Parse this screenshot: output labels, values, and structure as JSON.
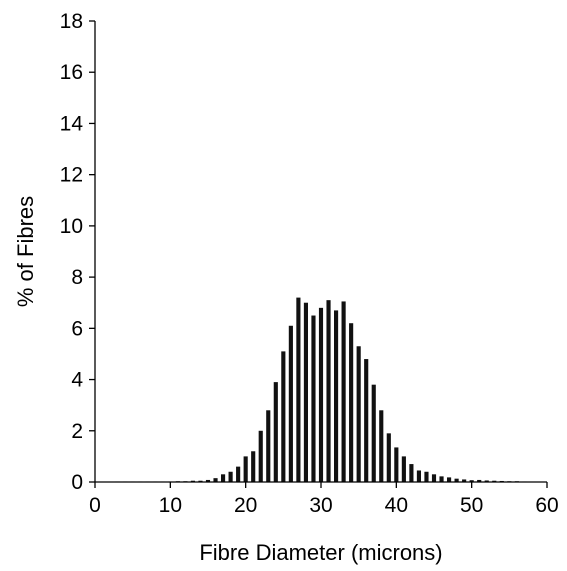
{
  "chart_data": {
    "type": "bar",
    "title": "",
    "xlabel": "Fibre Diameter (microns)",
    "ylabel": "% of Fibres",
    "xlim": [
      0,
      60
    ],
    "ylim": [
      0,
      18
    ],
    "xticks": [
      0,
      10,
      20,
      30,
      40,
      50,
      60
    ],
    "yticks": [
      0,
      2,
      4,
      6,
      8,
      10,
      12,
      14,
      16,
      18
    ],
    "grid": false,
    "legend": "none",
    "bar_color": "#111111",
    "series": [
      {
        "x": [
          3,
          4,
          5,
          6,
          7,
          8,
          9,
          10,
          11,
          12,
          13,
          14,
          15,
          16,
          17,
          18,
          19,
          20,
          21,
          22,
          23,
          24,
          25,
          26,
          27,
          28,
          29,
          30,
          31,
          32,
          33,
          34,
          35,
          36,
          37,
          38,
          39,
          40,
          41,
          42,
          43,
          44,
          45,
          46,
          47,
          48,
          49,
          50,
          51,
          52,
          53,
          54,
          55,
          56,
          57
        ],
        "values": [
          0.02,
          0.02,
          0.02,
          0.02,
          0.02,
          0.02,
          0.02,
          0.02,
          0.03,
          0.03,
          0.05,
          0.05,
          0.08,
          0.15,
          0.3,
          0.4,
          0.6,
          1.0,
          1.2,
          2.0,
          2.8,
          3.9,
          5.1,
          6.1,
          7.2,
          7.0,
          6.5,
          6.8,
          7.1,
          6.7,
          7.05,
          6.2,
          5.3,
          4.8,
          3.8,
          2.8,
          1.9,
          1.35,
          1.0,
          0.7,
          0.45,
          0.4,
          0.3,
          0.22,
          0.18,
          0.13,
          0.1,
          0.07,
          0.08,
          0.06,
          0.05,
          0.04,
          0.03,
          0.03,
          0.02
        ]
      }
    ]
  }
}
